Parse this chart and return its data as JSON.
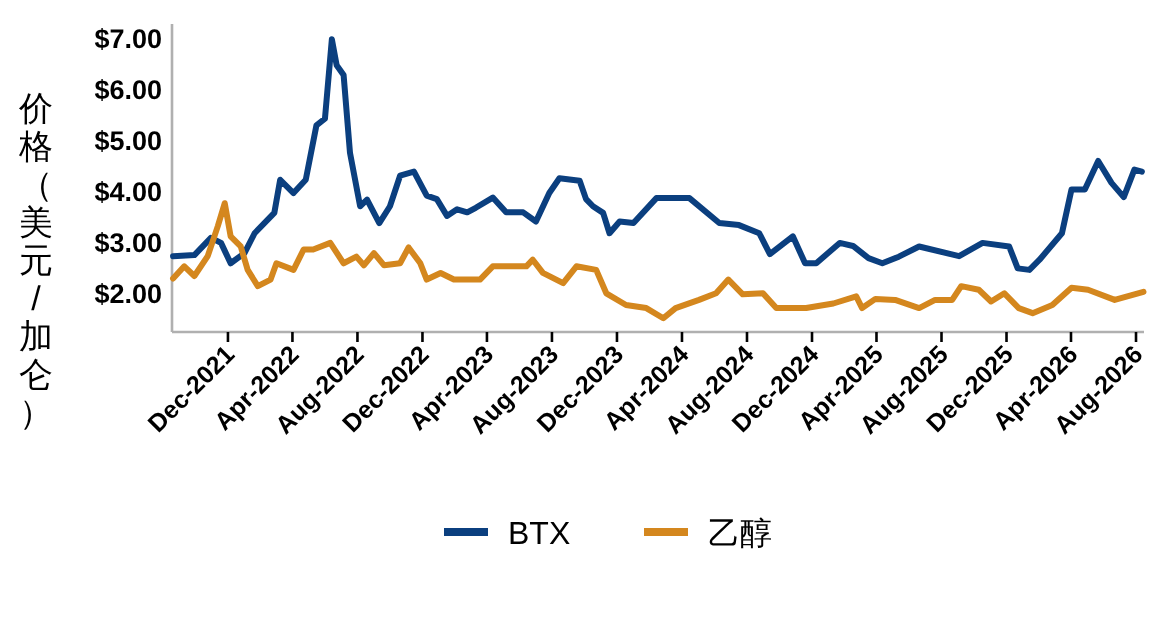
{
  "chart_data": {
    "type": "line",
    "ylabel": "价格（美元/加仑）",
    "xlim": [
      "2021-08-18",
      "2026-08-16"
    ],
    "xticks": [
      {
        "value": "2021-12-01",
        "label": "Dec-2021"
      },
      {
        "value": "2022-04-01",
        "label": "Apr-2022"
      },
      {
        "value": "2022-08-01",
        "label": "Aug-2022"
      },
      {
        "value": "2022-12-01",
        "label": "Dec-2022"
      },
      {
        "value": "2023-04-01",
        "label": "Apr-2023"
      },
      {
        "value": "2023-08-01",
        "label": "Aug-2023"
      },
      {
        "value": "2023-12-01",
        "label": "Dec-2023"
      },
      {
        "value": "2024-04-01",
        "label": "Apr-2024"
      },
      {
        "value": "2024-08-01",
        "label": "Aug-2024"
      },
      {
        "value": "2024-12-01",
        "label": "Dec-2024"
      },
      {
        "value": "2025-04-01",
        "label": "Apr-2025"
      },
      {
        "value": "2025-08-01",
        "label": "Aug-2025"
      },
      {
        "value": "2025-12-01",
        "label": "Dec-2025"
      },
      {
        "value": "2026-04-01",
        "label": "Apr-2026"
      },
      {
        "value": "2026-08-01",
        "label": "Aug-2026"
      }
    ],
    "ylim": [
      1.25,
      7.3
    ],
    "yticks": [
      {
        "value": 2,
        "label": "$2.00"
      },
      {
        "value": 3,
        "label": "$3.00"
      },
      {
        "value": 4,
        "label": "$4.00"
      },
      {
        "value": 5,
        "label": "$5.00"
      },
      {
        "value": 6,
        "label": "$6.00"
      },
      {
        "value": 7,
        "label": "$7.00"
      }
    ],
    "grid": false,
    "legend": "bottom",
    "marker": "none",
    "line_style": "solid",
    "series": [
      {
        "name": "BTX",
        "color": "#0b3f7f",
        "x": [
          "2021-08-20",
          "2021-09-29",
          "2021-10-30",
          "2021-11-18",
          "2021-12-06",
          "2022-01-01",
          "2022-01-20",
          "2022-02-26",
          "2022-03-09",
          "2022-04-03",
          "2022-04-26",
          "2022-05-16",
          "2022-06-01",
          "2022-06-14",
          "2022-06-23",
          "2022-07-06",
          "2022-07-18",
          "2022-08-06",
          "2022-08-19",
          "2022-09-11",
          "2022-10-01",
          "2022-10-20",
          "2022-11-15",
          "2022-12-09",
          "2022-12-28",
          "2023-01-16",
          "2023-02-04",
          "2023-02-23",
          "2023-03-11",
          "2023-04-12",
          "2023-05-07",
          "2023-06-08",
          "2023-07-02",
          "2023-07-27",
          "2023-08-15",
          "2023-09-22",
          "2023-10-04",
          "2023-10-17",
          "2023-11-05",
          "2023-11-17",
          "2023-12-06",
          "2024-01-01",
          "2024-02-13",
          "2024-04-15",
          "2024-06-10",
          "2024-07-17",
          "2024-08-24",
          "2024-09-13",
          "2024-10-26",
          "2024-11-18",
          "2024-12-09",
          "2025-01-22",
          "2025-02-16",
          "2025-03-17",
          "2025-04-12",
          "2025-05-13",
          "2025-06-20",
          "2025-09-03",
          "2025-10-17",
          "2025-12-06",
          "2025-12-22",
          "2026-01-13",
          "2026-02-01",
          "2026-03-15",
          "2026-04-02",
          "2026-04-27",
          "2026-05-22",
          "2026-06-16",
          "2026-07-09",
          "2026-07-29",
          "2026-08-12"
        ],
        "values": [
          2.74,
          2.76,
          3.1,
          3.0,
          2.6,
          2.8,
          3.19,
          3.59,
          4.24,
          3.98,
          4.24,
          5.31,
          5.44,
          7.0,
          6.49,
          6.3,
          4.77,
          3.72,
          3.85,
          3.39,
          3.72,
          4.32,
          4.4,
          3.93,
          3.86,
          3.53,
          3.66,
          3.6,
          3.69,
          3.89,
          3.6,
          3.6,
          3.42,
          3.98,
          4.27,
          4.22,
          3.86,
          3.72,
          3.59,
          3.19,
          3.42,
          3.39,
          3.88,
          3.88,
          3.39,
          3.35,
          3.19,
          2.78,
          3.13,
          2.6,
          2.6,
          3.0,
          2.94,
          2.7,
          2.6,
          2.73,
          2.93,
          2.74,
          3.0,
          2.93,
          2.5,
          2.47,
          2.67,
          3.19,
          4.05,
          4.05,
          4.61,
          4.18,
          3.9,
          4.44,
          4.4
        ]
      },
      {
        "name": "乙醇",
        "color": "#d4871e",
        "x": [
          "2021-08-20",
          "2021-09-10",
          "2021-09-29",
          "2021-10-24",
          "2021-11-12",
          "2021-11-25",
          "2021-12-06",
          "2021-12-25",
          "2022-01-07",
          "2022-01-26",
          "2022-02-19",
          "2022-03-02",
          "2022-04-03",
          "2022-04-22",
          "2022-05-10",
          "2022-06-11",
          "2022-07-06",
          "2022-07-30",
          "2022-08-13",
          "2022-09-01",
          "2022-09-20",
          "2022-10-20",
          "2022-11-05",
          "2022-11-27",
          "2022-12-09",
          "2023-01-04",
          "2023-01-29",
          "2023-03-19",
          "2023-04-12",
          "2023-06-14",
          "2023-06-26",
          "2023-07-15",
          "2023-08-22",
          "2023-09-16",
          "2023-10-23",
          "2023-11-11",
          "2023-12-18",
          "2024-01-25",
          "2024-02-26",
          "2024-03-20",
          "2024-05-03",
          "2024-06-04",
          "2024-06-27",
          "2024-07-24",
          "2024-08-31",
          "2024-09-25",
          "2024-11-20",
          "2025-01-10",
          "2025-02-22",
          "2025-03-05",
          "2025-03-30",
          "2025-05-06",
          "2025-06-20",
          "2025-07-20",
          "2025-08-21",
          "2025-09-07",
          "2025-10-10",
          "2025-11-02",
          "2025-11-27",
          "2025-12-24",
          "2026-01-19",
          "2026-02-25",
          "2026-04-02",
          "2026-05-03",
          "2026-06-22",
          "2026-08-15"
        ],
        "values": [
          2.3,
          2.54,
          2.35,
          2.74,
          3.33,
          3.78,
          3.13,
          2.93,
          2.47,
          2.15,
          2.28,
          2.6,
          2.47,
          2.87,
          2.87,
          3.0,
          2.6,
          2.73,
          2.56,
          2.8,
          2.56,
          2.6,
          2.91,
          2.6,
          2.28,
          2.41,
          2.28,
          2.28,
          2.54,
          2.54,
          2.67,
          2.41,
          2.21,
          2.54,
          2.47,
          2.01,
          1.78,
          1.72,
          1.52,
          1.72,
          1.88,
          2.01,
          2.28,
          1.99,
          2.01,
          1.72,
          1.72,
          1.81,
          1.95,
          1.72,
          1.9,
          1.88,
          1.72,
          1.88,
          1.88,
          2.15,
          2.08,
          1.85,
          2.01,
          1.72,
          1.62,
          1.78,
          2.12,
          2.08,
          1.88,
          2.04
        ]
      }
    ]
  }
}
